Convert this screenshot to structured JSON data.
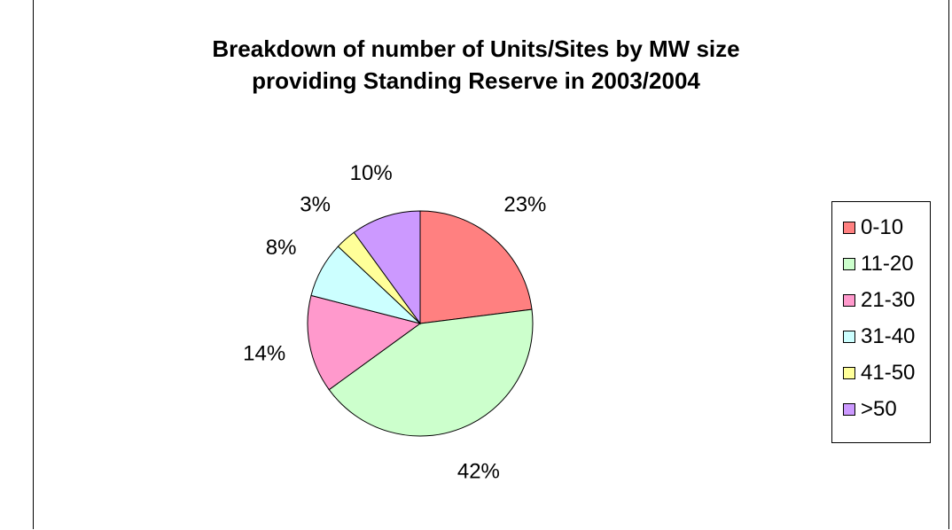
{
  "chart_data": {
    "type": "pie",
    "title": "Breakdown of number of Units/Sites by MW size providing Standing Reserve in 2003/2004",
    "title_lines": [
      "Breakdown of number of Units/Sites by MW size",
      "providing Standing Reserve in 2003/2004"
    ],
    "categories": [
      "0-10",
      "11-20",
      "21-30",
      "31-40",
      "41-50",
      ">50"
    ],
    "values": [
      23,
      42,
      14,
      8,
      3,
      10
    ],
    "labels": [
      "23%",
      "42%",
      "14%",
      "8%",
      "3%",
      "10%"
    ],
    "colors": [
      "#ff8080",
      "#ccffcc",
      "#ff99cc",
      "#ccffff",
      "#ffff99",
      "#cc99ff"
    ],
    "legend_position": "right"
  }
}
